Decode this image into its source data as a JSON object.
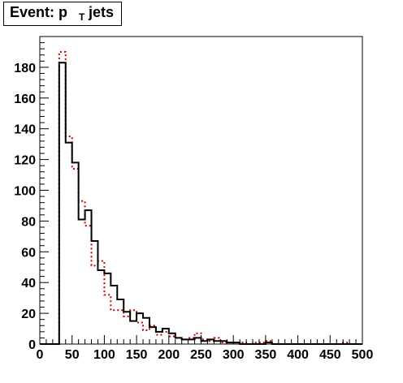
{
  "chart_data": {
    "type": "histogram",
    "title": "Event: p_T jets",
    "title_parts": {
      "main": "Event: p",
      "sub": "T",
      "rest": " jets"
    },
    "xlabel": "",
    "ylabel": "",
    "xlim": [
      0,
      500
    ],
    "ylim": [
      0,
      200
    ],
    "x_ticks": [
      0,
      50,
      100,
      150,
      200,
      250,
      300,
      350,
      400,
      450,
      500
    ],
    "y_ticks": [
      0,
      20,
      40,
      60,
      80,
      100,
      120,
      140,
      160,
      180
    ],
    "grid": false,
    "legend": "none",
    "bin_edges_start": 0,
    "bin_width": 10,
    "series": [
      {
        "style": "solid",
        "color": "#000000",
        "values": [
          0,
          0,
          0,
          183,
          131,
          118,
          81,
          87,
          67,
          48,
          46,
          38,
          29,
          21,
          15,
          20,
          17,
          11,
          8,
          10,
          7,
          4,
          3,
          3,
          4,
          2,
          3,
          2,
          2,
          1,
          1,
          0,
          0,
          0,
          0,
          1,
          0,
          0,
          0,
          0,
          0,
          0,
          0,
          0,
          0,
          0,
          0,
          0,
          0,
          0
        ]
      },
      {
        "style": "dotted",
        "color": "#cc0000",
        "values": [
          0,
          0,
          0,
          190,
          135,
          114,
          93,
          77,
          51,
          54,
          32,
          22,
          22,
          18,
          22,
          14,
          9,
          12,
          6,
          8,
          5,
          4,
          3,
          4,
          7,
          3,
          2,
          4,
          1,
          1,
          1,
          1,
          0,
          1,
          1,
          2,
          0,
          0,
          0,
          0,
          0,
          0,
          0,
          0,
          0,
          0,
          0,
          1,
          0,
          0
        ]
      }
    ]
  }
}
